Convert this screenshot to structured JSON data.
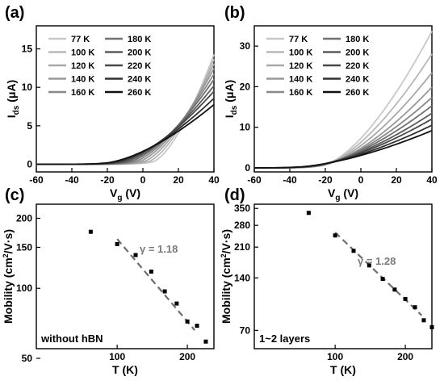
{
  "chart_data": [
    {
      "panel": "(a)",
      "type": "line",
      "xlabel": "V",
      "xlabel_sub": "g",
      "xlabel_unit": " (V)",
      "ylabel": "I",
      "ylabel_sub": "ds",
      "ylabel_unit": " (μA)",
      "xlim": [
        -60,
        40
      ],
      "ylim": [
        -1,
        18
      ],
      "xticks": [
        "-60",
        "-40",
        "-20",
        "0",
        "20",
        "40"
      ],
      "yticks": [
        "0",
        "5",
        "10",
        "15"
      ],
      "legend_position": "top-left",
      "series": [
        {
          "name": "77 K",
          "color": "#c8c8c8",
          "threshold": 5,
          "end": 14.0
        },
        {
          "name": "100 K",
          "color": "#b8b8b8",
          "threshold": 2,
          "end": 13.4
        },
        {
          "name": "120 K",
          "color": "#a8a8a8",
          "threshold": -1,
          "end": 12.8
        },
        {
          "name": "140 K",
          "color": "#989898",
          "threshold": -4,
          "end": 12.2
        },
        {
          "name": "160 K",
          "color": "#888888",
          "threshold": -7,
          "end": 11.5
        },
        {
          "name": "180 K",
          "color": "#707070",
          "threshold": -10,
          "end": 10.8
        },
        {
          "name": "200 K",
          "color": "#5c5c5c",
          "threshold": -13,
          "end": 10.0
        },
        {
          "name": "220 K",
          "color": "#484848",
          "threshold": -16,
          "end": 9.3
        },
        {
          "name": "240 K",
          "color": "#303030",
          "threshold": -19,
          "end": 8.4
        },
        {
          "name": "260 K",
          "color": "#111111",
          "threshold": -22,
          "end": 7.6
        }
      ]
    },
    {
      "panel": "(b)",
      "type": "line",
      "xlabel": "V",
      "xlabel_sub": "g",
      "xlabel_unit": " (V)",
      "ylabel": "I",
      "ylabel_sub": "ds",
      "ylabel_unit": " (μA)",
      "xlim": [
        -60,
        40
      ],
      "ylim": [
        -1,
        35
      ],
      "xticks": [
        "-60",
        "-40",
        "-20",
        "0",
        "20",
        "40"
      ],
      "yticks": [
        "0",
        "10",
        "20",
        "30"
      ],
      "legend_position": "top-left",
      "series": [
        {
          "name": "77 K",
          "color": "#c8c8c8",
          "threshold": -22,
          "end": 33.0
        },
        {
          "name": "100 K",
          "color": "#b8b8b8",
          "threshold": -23,
          "end": 27.5
        },
        {
          "name": "120 K",
          "color": "#a8a8a8",
          "threshold": -24,
          "end": 23.0
        },
        {
          "name": "140 K",
          "color": "#989898",
          "threshold": -25,
          "end": 19.5
        },
        {
          "name": "160 K",
          "color": "#888888",
          "threshold": -27,
          "end": 17.0
        },
        {
          "name": "180 K",
          "color": "#707070",
          "threshold": -29,
          "end": 15.0
        },
        {
          "name": "200 K",
          "color": "#5c5c5c",
          "threshold": -31,
          "end": 13.2
        },
        {
          "name": "220 K",
          "color": "#484848",
          "threshold": -33,
          "end": 11.8
        },
        {
          "name": "240 K",
          "color": "#303030",
          "threshold": -35,
          "end": 10.3
        },
        {
          "name": "260 K",
          "color": "#111111",
          "threshold": -37,
          "end": 9.0
        }
      ]
    },
    {
      "panel": "(c)",
      "type": "scatter",
      "scale": "log-log",
      "xlabel": "T (K)",
      "ylabel": "Mobility (cm",
      "ylabel_sup": "2",
      "ylabel_unit": "/V·s)",
      "xlim": [
        45,
        260
      ],
      "ylim": [
        55,
        230
      ],
      "xticks": [
        100,
        200
      ],
      "yticks": [
        50,
        100,
        150,
        200
      ],
      "annotation": "without hBN",
      "fit_label": "γ = 1.18",
      "fit_exponent": -1.18,
      "fit_range": [
        100,
        215
      ],
      "fit_anchor": [
        100,
        163
      ],
      "points": [
        {
          "x": 77,
          "y": 175
        },
        {
          "x": 100,
          "y": 155
        },
        {
          "x": 120,
          "y": 139
        },
        {
          "x": 140,
          "y": 118
        },
        {
          "x": 160,
          "y": 97
        },
        {
          "x": 180,
          "y": 86
        },
        {
          "x": 200,
          "y": 72
        },
        {
          "x": 220,
          "y": 69
        },
        {
          "x": 240,
          "y": 59
        }
      ]
    },
    {
      "panel": "(d)",
      "type": "scatter",
      "scale": "log-log",
      "xlabel": "T (K)",
      "ylabel": "Mobility (cm",
      "ylabel_sup": "2",
      "ylabel_unit": "/V·s)",
      "xlim": [
        45,
        260
      ],
      "ylim": [
        55,
        370
      ],
      "xticks": [
        100,
        200
      ],
      "yticks": [
        70,
        140,
        210,
        280,
        350
      ],
      "annotation": "1~2 layers",
      "fit_label": "γ = 1.28",
      "fit_exponent": -1.28,
      "fit_range": [
        100,
        235
      ],
      "fit_anchor": [
        100,
        255
      ],
      "points": [
        {
          "x": 77,
          "y": 330
        },
        {
          "x": 100,
          "y": 245
        },
        {
          "x": 120,
          "y": 200
        },
        {
          "x": 140,
          "y": 165
        },
        {
          "x": 160,
          "y": 138
        },
        {
          "x": 180,
          "y": 120
        },
        {
          "x": 200,
          "y": 106
        },
        {
          "x": 220,
          "y": 95
        },
        {
          "x": 240,
          "y": 80
        },
        {
          "x": 260,
          "y": 73
        }
      ]
    }
  ]
}
